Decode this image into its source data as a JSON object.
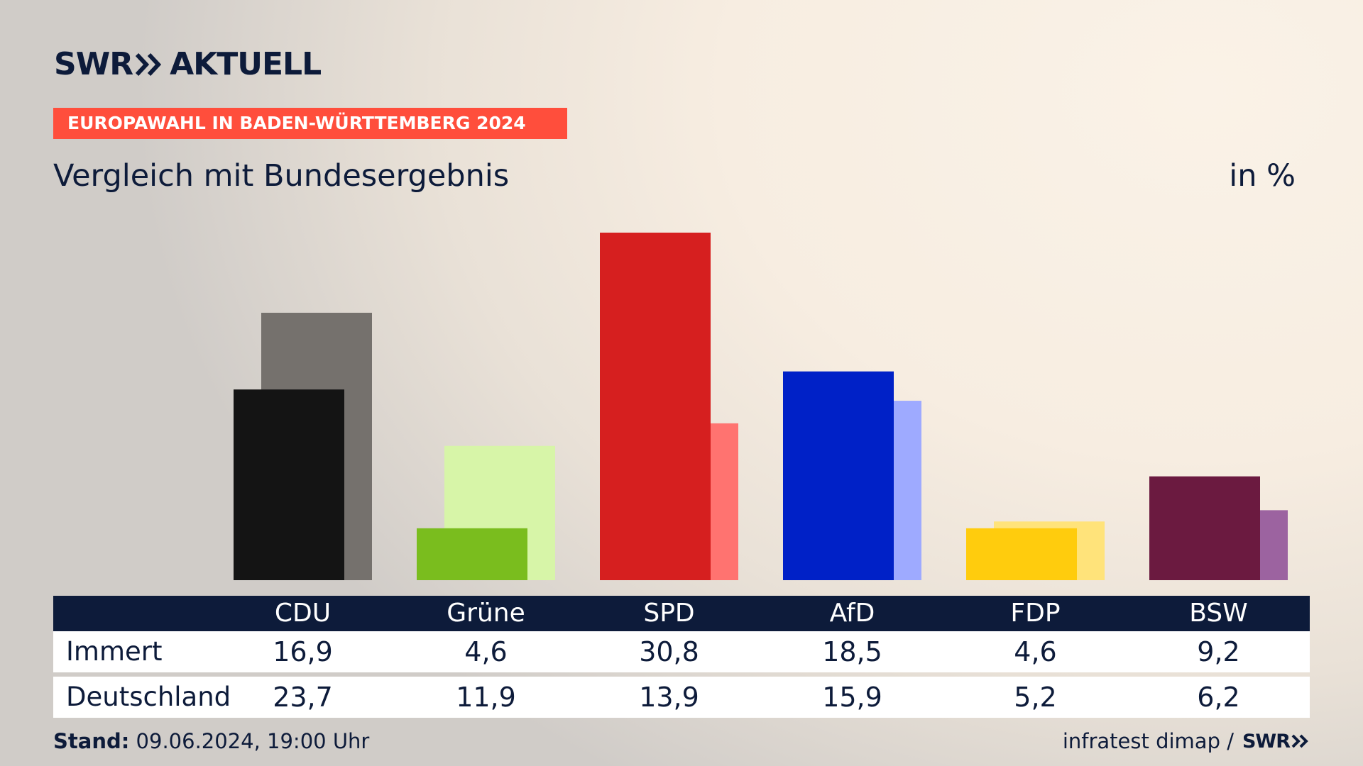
{
  "brand": {
    "logo_left": "SWR",
    "logo_right": "AKTUELL",
    "footer_logo": "SWR"
  },
  "kicker": "EUROPAWAHL IN BADEN-WÜRTTEMBERG 2024",
  "title": "Vergleich mit Bundesergebnis",
  "unit": "in %",
  "footer": {
    "stand_label": "Stand:",
    "stand_value": "09.06.2024, 19:00 Uhr",
    "source": "infratest dimap /"
  },
  "table": {
    "row_labels": [
      "Immert",
      "Deutschland"
    ]
  },
  "chart_data": {
    "type": "bar",
    "categories": [
      "CDU",
      "Grüne",
      "SPD",
      "AfD",
      "FDP",
      "BSW"
    ],
    "series": [
      {
        "name": "Immert",
        "values": [
          16.9,
          4.6,
          30.8,
          18.5,
          4.6,
          9.2
        ],
        "colors": [
          "#141414",
          "#7abd1e",
          "#d61f1f",
          "#0021c7",
          "#ffcc0d",
          "#6b1a40"
        ]
      },
      {
        "name": "Deutschland",
        "values": [
          23.7,
          11.9,
          13.9,
          15.9,
          5.2,
          6.2
        ],
        "colors": [
          "#75716d",
          "#d7f5a8",
          "#ff7370",
          "#9eaaff",
          "#ffe37a",
          "#9c63a0"
        ]
      }
    ],
    "value_labels": {
      "Immert": [
        "16,9",
        "4,6",
        "30,8",
        "18,5",
        "4,6",
        "9,2"
      ],
      "Deutschland": [
        "23,7",
        "11,9",
        "13,9",
        "15,9",
        "5,2",
        "6,2"
      ]
    },
    "ylim": [
      0,
      30.8
    ]
  }
}
